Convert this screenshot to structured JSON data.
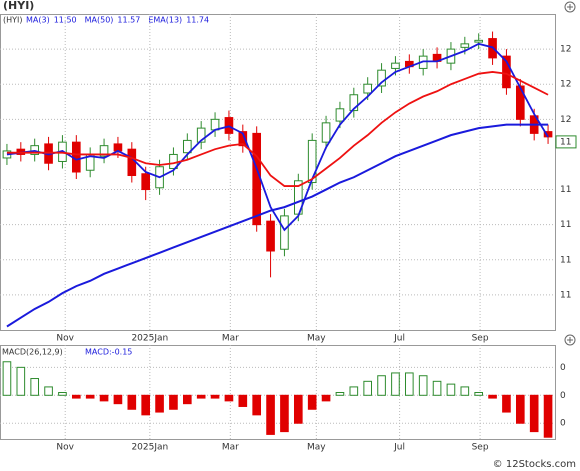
{
  "chart_data": {
    "type": "candlestick",
    "title": "(HYI)",
    "x": [
      0,
      1,
      2,
      3,
      4,
      5,
      6,
      7,
      8,
      9,
      10,
      11,
      12,
      13,
      14,
      15,
      16,
      17,
      18,
      19,
      20,
      21,
      22,
      23,
      24,
      25,
      26,
      27,
      28,
      29,
      30,
      31,
      32,
      33,
      34,
      35,
      36,
      37,
      38,
      39
    ],
    "xlim": [
      -0.5,
      39.5
    ],
    "xticks": [
      {
        "value": 4.2,
        "label": "Nov"
      },
      {
        "value": 10.3,
        "label": "2025Jan"
      },
      {
        "value": 16.1,
        "label": "Mar"
      },
      {
        "value": 22.3,
        "label": "May"
      },
      {
        "value": 28.3,
        "label": "Jul"
      },
      {
        "value": 34.1,
        "label": "Sep"
      }
    ],
    "ylim": [
      10.4,
      12.2
    ],
    "yticks": [
      {
        "value": 12.0,
        "label": "12"
      },
      {
        "value": 11.8,
        "label": "12"
      },
      {
        "value": 11.6,
        "label": "12"
      },
      {
        "value": 11.2,
        "label": "11"
      },
      {
        "value": 11.0,
        "label": "11"
      },
      {
        "value": 10.8,
        "label": "11"
      },
      {
        "value": 10.6,
        "label": "11"
      }
    ],
    "grid": true,
    "up_color": "#2e8b2e",
    "down_color": "#e00000",
    "open": [
      11.38,
      11.43,
      11.4,
      11.46,
      11.36,
      11.47,
      11.31,
      11.39,
      11.46,
      11.43,
      11.29,
      11.21,
      11.32,
      11.41,
      11.47,
      11.54,
      11.61,
      11.53,
      11.52,
      11.02,
      10.86,
      11.06,
      11.24,
      11.47,
      11.59,
      11.65,
      11.75,
      11.79,
      11.89,
      11.93,
      11.89,
      11.97,
      11.92,
      12.01,
      12.04,
      12.06,
      11.96,
      11.79,
      11.62,
      11.53
    ],
    "high": [
      11.46,
      11.47,
      11.49,
      11.5,
      11.51,
      11.51,
      11.44,
      11.49,
      11.5,
      11.47,
      11.33,
      11.37,
      11.44,
      11.52,
      11.59,
      11.64,
      11.65,
      11.57,
      11.56,
      11.06,
      11.09,
      11.29,
      11.52,
      11.62,
      11.7,
      11.78,
      11.84,
      11.92,
      11.96,
      11.97,
      12.0,
      12.01,
      12.04,
      12.07,
      12.09,
      12.1,
      12.0,
      11.83,
      11.66,
      11.57
    ],
    "low": [
      11.34,
      11.36,
      11.36,
      11.31,
      11.32,
      11.26,
      11.27,
      11.35,
      11.38,
      11.24,
      11.14,
      11.17,
      11.28,
      11.37,
      11.43,
      11.5,
      11.48,
      11.41,
      10.96,
      10.7,
      10.82,
      11.02,
      11.2,
      11.43,
      11.55,
      11.61,
      11.71,
      11.75,
      11.85,
      11.86,
      11.85,
      11.89,
      11.88,
      11.97,
      12.0,
      11.91,
      11.74,
      11.56,
      11.48,
      11.46
    ],
    "close": [
      11.42,
      11.4,
      11.45,
      11.35,
      11.47,
      11.3,
      11.4,
      11.45,
      11.42,
      11.28,
      11.2,
      11.33,
      11.4,
      11.48,
      11.55,
      11.6,
      11.52,
      11.45,
      11.0,
      10.85,
      11.05,
      11.25,
      11.48,
      11.58,
      11.66,
      11.74,
      11.8,
      11.88,
      11.92,
      11.9,
      11.96,
      11.93,
      12.0,
      12.03,
      12.05,
      11.95,
      11.78,
      11.6,
      11.52,
      11.5
    ],
    "price_tag": "11",
    "series": [
      {
        "name": "MA(3)",
        "last_label": "11.50",
        "color": "#1a1adc",
        "width": 1.8,
        "values": [
          11.4,
          11.41,
          11.42,
          11.4,
          11.42,
          11.37,
          11.39,
          11.38,
          11.42,
          11.38,
          11.3,
          11.27,
          11.31,
          11.4,
          11.48,
          11.54,
          11.56,
          11.52,
          11.32,
          11.1,
          10.97,
          11.05,
          11.26,
          11.44,
          11.57,
          11.66,
          11.73,
          11.81,
          11.87,
          11.9,
          11.93,
          11.93,
          11.96,
          11.99,
          12.03,
          12.01,
          11.93,
          11.78,
          11.63,
          11.5
        ]
      },
      {
        "name": "MA(50)",
        "last_label": "11.57",
        "color": "#1a1adc",
        "width": 2,
        "values": [
          10.42,
          10.47,
          10.52,
          10.56,
          10.61,
          10.65,
          10.68,
          10.72,
          10.75,
          10.78,
          10.81,
          10.84,
          10.87,
          10.9,
          10.93,
          10.96,
          10.99,
          11.02,
          11.05,
          11.08,
          11.1,
          11.13,
          11.16,
          11.2,
          11.24,
          11.27,
          11.31,
          11.35,
          11.39,
          11.42,
          11.45,
          11.48,
          11.51,
          11.53,
          11.55,
          11.56,
          11.57,
          11.57,
          11.57,
          11.57
        ]
      },
      {
        "name": "EMA(13)",
        "last_label": "11.74",
        "color": "#ee1111",
        "width": 1.8,
        "values": [
          11.41,
          11.41,
          11.41,
          11.41,
          11.41,
          11.4,
          11.4,
          11.4,
          11.4,
          11.38,
          11.35,
          11.34,
          11.35,
          11.37,
          11.4,
          11.43,
          11.45,
          11.46,
          11.39,
          11.28,
          11.22,
          11.22,
          11.26,
          11.32,
          11.38,
          11.45,
          11.51,
          11.58,
          11.64,
          11.69,
          11.73,
          11.76,
          11.8,
          11.83,
          11.86,
          11.87,
          11.86,
          11.82,
          11.78,
          11.74
        ]
      }
    ],
    "macd": {
      "title": "MACD(26,12,9)",
      "last_label": "MACD:-0.15",
      "pos_color": "#2e8b2e",
      "neg_color": "#e00000",
      "ylim": [
        -0.16,
        0.18
      ],
      "yticks": [
        {
          "value": 0.1,
          "label": "0"
        },
        0,
        {
          "value": -0.1,
          "label": "0"
        }
      ],
      "values": [
        0.12,
        0.1,
        0.06,
        0.03,
        0.01,
        -0.01,
        -0.01,
        -0.02,
        -0.03,
        -0.05,
        -0.07,
        -0.06,
        -0.05,
        -0.03,
        -0.01,
        -0.01,
        -0.02,
        -0.04,
        -0.07,
        -0.14,
        -0.13,
        -0.1,
        -0.05,
        -0.02,
        0.01,
        0.03,
        0.05,
        0.07,
        0.08,
        0.08,
        0.07,
        0.05,
        0.04,
        0.03,
        0.01,
        -0.01,
        -0.06,
        -0.1,
        -0.13,
        -0.15
      ]
    },
    "watermark": "© 12Stocks.com"
  }
}
